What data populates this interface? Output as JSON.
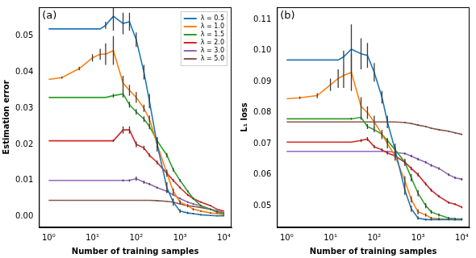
{
  "chart_data": [
    {
      "type": "line",
      "title": "(a)",
      "x_label": "Number of training samples",
      "y_label": "Estimation error",
      "log": "x",
      "grid": false,
      "legend": "upper right",
      "xlim": [
        0.6,
        15000
      ],
      "ylim": [
        -0.003,
        0.058
      ],
      "xticks": [
        {
          "value": 1,
          "label": "10⁰"
        },
        {
          "value": 10,
          "label": "10¹"
        },
        {
          "value": 100,
          "label": "10²"
        },
        {
          "value": 1000,
          "label": "10³"
        },
        {
          "value": 10000,
          "label": "10⁴"
        }
      ],
      "yticks": [
        {
          "value": 0,
          "label": "0.00"
        },
        0.01,
        0.02,
        0.03,
        0.04,
        0.05
      ],
      "x": [
        1,
        2,
        5,
        10,
        15,
        20,
        30,
        50,
        70,
        100,
        150,
        200,
        300,
        500,
        700,
        1000,
        1500,
        2000,
        3000,
        5000,
        7000,
        10000
      ],
      "series": [
        {
          "name": "λ = 0.5",
          "color": "#1f77b4",
          "values": [
            0.052,
            0.052,
            0.052,
            0.052,
            0.052,
            0.053,
            0.0555,
            0.0535,
            0.054,
            0.049,
            0.04,
            0.032,
            0.02,
            0.008,
            0.004,
            0.0015,
            0.001,
            0.0008,
            0.0005,
            0.0003,
            0.0002,
            0.0002
          ],
          "errors": [
            0,
            0,
            0,
            0,
            0,
            0.001,
            0.004,
            0.003,
            0.0025,
            0.002,
            0.002,
            0.002,
            0.002,
            0.0015,
            0.001,
            0.0005,
            0.0003,
            0.0002,
            0.0002,
            0.0001,
            0.0001,
            0.0001
          ]
        },
        {
          "name": "λ = 1.0",
          "color": "#ff7f0e",
          "values": [
            0.038,
            0.0385,
            0.041,
            0.044,
            0.045,
            0.045,
            0.046,
            0.037,
            0.035,
            0.033,
            0.03,
            0.027,
            0.02,
            0.012,
            0.007,
            0.004,
            0.003,
            0.002,
            0.0015,
            0.001,
            0.0008,
            0.0005
          ],
          "errors": [
            0,
            0.0003,
            0.0005,
            0.001,
            0.0015,
            0.003,
            0.004,
            0.002,
            0.0015,
            0.0015,
            0.001,
            0.001,
            0.001,
            0.001,
            0.0008,
            0.0005,
            0.0004,
            0.0003,
            0.0002,
            0.0002,
            0.0001,
            0.0001
          ]
        },
        {
          "name": "λ = 1.5",
          "color": "#2ca02c",
          "values": [
            0.033,
            0.033,
            0.033,
            0.033,
            0.033,
            0.033,
            0.0335,
            0.034,
            0.031,
            0.029,
            0.027,
            0.025,
            0.021,
            0.017,
            0.013,
            0.01,
            0.007,
            0.005,
            0.003,
            0.002,
            0.0012,
            0.0008
          ],
          "errors": [
            0,
            0,
            0,
            0,
            0,
            0,
            0.0005,
            0.001,
            0.0008,
            0.0008,
            0.0008,
            0.0008,
            0.0008,
            0.0006,
            0.0005,
            0.0004,
            0.0003,
            0.0003,
            0.0002,
            0.0002,
            0.0001,
            0.0001
          ]
        },
        {
          "name": "λ = 2.0",
          "color": "#d62728",
          "values": [
            0.021,
            0.021,
            0.021,
            0.021,
            0.021,
            0.021,
            0.021,
            0.024,
            0.024,
            0.02,
            0.019,
            0.017,
            0.015,
            0.012,
            0.01,
            0.008,
            0.006,
            0.005,
            0.004,
            0.003,
            0.002,
            0.0015
          ],
          "errors": [
            0,
            0,
            0,
            0,
            0,
            0,
            0.0003,
            0.001,
            0.001,
            0.0008,
            0.0006,
            0.0005,
            0.0005,
            0.0004,
            0.0004,
            0.0003,
            0.0003,
            0.0002,
            0.0002,
            0.0002,
            0.0001,
            0.0001
          ]
        },
        {
          "name": "λ = 3.0",
          "color": "#9467bd",
          "values": [
            0.01,
            0.01,
            0.01,
            0.01,
            0.01,
            0.01,
            0.01,
            0.01,
            0.01,
            0.0105,
            0.0095,
            0.009,
            0.008,
            0.007,
            0.006,
            0.005,
            0.004,
            0.0035,
            0.003,
            0.002,
            0.0015,
            0.001
          ],
          "errors": [
            0,
            0,
            0,
            0,
            0,
            0,
            0,
            0.0003,
            0.0003,
            0.0006,
            0.0004,
            0.0003,
            0.0003,
            0.0003,
            0.0002,
            0.0002,
            0.0002,
            0.0002,
            0.0001,
            0.0001,
            0.0001,
            0.0001
          ]
        },
        {
          "name": "λ = 5.0",
          "color": "#8c564b",
          "values": [
            0.0045,
            0.0045,
            0.0045,
            0.0045,
            0.0045,
            0.0045,
            0.0045,
            0.0045,
            0.0045,
            0.0045,
            0.0045,
            0.0045,
            0.0044,
            0.0042,
            0.004,
            0.0035,
            0.003,
            0.0028,
            0.0025,
            0.002,
            0.0015,
            0.001
          ],
          "errors": [
            0,
            0,
            0,
            0,
            0,
            0,
            0,
            0,
            0,
            0,
            0,
            0,
            0.0001,
            0.0001,
            0.0001,
            0.0001,
            0.0001,
            0.0001,
            0.0001,
            0.0001,
            0.0001,
            0.0001
          ]
        }
      ]
    },
    {
      "type": "line",
      "title": "(b)",
      "x_label": "Number of training samples",
      "y_label": "L₁ loss",
      "log": "x",
      "grid": false,
      "xlim": [
        0.6,
        15000
      ],
      "ylim": [
        0.043,
        0.114
      ],
      "xticks": [
        {
          "value": 1,
          "label": "10⁰"
        },
        {
          "value": 10,
          "label": "10¹"
        },
        {
          "value": 100,
          "label": "10²"
        },
        {
          "value": 1000,
          "label": "10³"
        },
        {
          "value": 10000,
          "label": "10⁴"
        }
      ],
      "yticks": [
        0.05,
        0.06,
        0.07,
        0.08,
        0.09,
        {
          "value": 0.1,
          "label": "0.10"
        },
        0.11
      ],
      "x": [
        1,
        2,
        5,
        10,
        15,
        20,
        30,
        50,
        70,
        100,
        150,
        200,
        300,
        500,
        700,
        1000,
        1500,
        2000,
        3000,
        5000,
        7000,
        10000
      ],
      "series": [
        {
          "name": "λ = 0.5",
          "color": "#1f77b4",
          "values": [
            0.097,
            0.097,
            0.097,
            0.097,
            0.097,
            0.098,
            0.1005,
            0.099,
            0.0985,
            0.093,
            0.085,
            0.077,
            0.068,
            0.055,
            0.049,
            0.046,
            0.0455,
            0.0455,
            0.0455,
            0.0455,
            0.0455,
            0.0455
          ],
          "errors": [
            0,
            0,
            0,
            0,
            0,
            0.002,
            0.008,
            0.005,
            0.004,
            0.003,
            0.002,
            0.002,
            0.002,
            0.0015,
            0.001,
            0.0005,
            0.0003,
            0.0003,
            0.0002,
            0.0002,
            0.0002,
            0.0002
          ]
        },
        {
          "name": "λ = 1.0",
          "color": "#ff7f0e",
          "values": [
            0.0845,
            0.0848,
            0.0855,
            0.089,
            0.091,
            0.092,
            0.093,
            0.082,
            0.08,
            0.077,
            0.073,
            0.07,
            0.066,
            0.058,
            0.052,
            0.048,
            0.047,
            0.046,
            0.0458,
            0.0456,
            0.0455,
            0.0455
          ],
          "errors": [
            0,
            0.0004,
            0.0008,
            0.002,
            0.003,
            0.004,
            0.006,
            0.003,
            0.002,
            0.002,
            0.0015,
            0.0015,
            0.0015,
            0.0015,
            0.001,
            0.0008,
            0.0005,
            0.0004,
            0.0003,
            0.0002,
            0.0002,
            0.0002
          ]
        },
        {
          "name": "λ = 1.5",
          "color": "#2ca02c",
          "values": [
            0.078,
            0.078,
            0.078,
            0.078,
            0.078,
            0.078,
            0.078,
            0.0785,
            0.0755,
            0.0745,
            0.073,
            0.071,
            0.068,
            0.064,
            0.059,
            0.054,
            0.05,
            0.048,
            0.047,
            0.046,
            0.0458,
            0.0457
          ],
          "errors": [
            0,
            0,
            0,
            0,
            0,
            0,
            0.0003,
            0.0008,
            0.0008,
            0.0008,
            0.0008,
            0.0008,
            0.0008,
            0.0012,
            0.0012,
            0.001,
            0.0008,
            0.0006,
            0.0005,
            0.0004,
            0.0003,
            0.0003
          ]
        },
        {
          "name": "λ = 2.0",
          "color": "#d62728",
          "values": [
            0.0705,
            0.0705,
            0.0705,
            0.0705,
            0.0705,
            0.0705,
            0.0705,
            0.071,
            0.0715,
            0.069,
            0.068,
            0.067,
            0.066,
            0.064,
            0.062,
            0.06,
            0.057,
            0.055,
            0.053,
            0.051,
            0.0505,
            0.0495
          ],
          "errors": [
            0,
            0,
            0,
            0,
            0,
            0,
            0,
            0.0005,
            0.0006,
            0.0005,
            0.0005,
            0.0005,
            0.0005,
            0.0006,
            0.0006,
            0.0006,
            0.0005,
            0.0005,
            0.0004,
            0.0004,
            0.0003,
            0.0003
          ]
        },
        {
          "name": "λ = 3.0",
          "color": "#9467bd",
          "values": [
            0.0675,
            0.0675,
            0.0675,
            0.0675,
            0.0675,
            0.0675,
            0.0675,
            0.0675,
            0.0675,
            0.0675,
            0.0675,
            0.0675,
            0.0672,
            0.0668,
            0.066,
            0.065,
            0.064,
            0.063,
            0.062,
            0.06,
            0.059,
            0.0585
          ],
          "errors": [
            0,
            0,
            0,
            0,
            0,
            0,
            0,
            0,
            0,
            0,
            0,
            0,
            0.0002,
            0.0003,
            0.0004,
            0.0004,
            0.0004,
            0.0004,
            0.0004,
            0.0004,
            0.0004,
            0.0004
          ]
        },
        {
          "name": "λ = 5.0",
          "color": "#8c564b",
          "values": [
            0.077,
            0.077,
            0.077,
            0.077,
            0.077,
            0.077,
            0.077,
            0.077,
            0.077,
            0.077,
            0.077,
            0.077,
            0.077,
            0.0768,
            0.0765,
            0.076,
            0.0755,
            0.075,
            0.0745,
            0.074,
            0.0735,
            0.073
          ],
          "errors": [
            0,
            0,
            0,
            0,
            0,
            0,
            0,
            0,
            0,
            0,
            0,
            0,
            0,
            0.0002,
            0.0002,
            0.0002,
            0.0002,
            0.0002,
            0.0002,
            0.0002,
            0.0002,
            0.0002
          ]
        }
      ]
    }
  ]
}
